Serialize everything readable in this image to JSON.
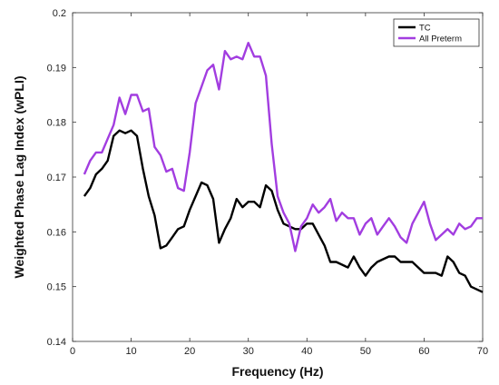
{
  "chart_data": {
    "type": "line",
    "xlabel": "Frequency (Hz)",
    "ylabel": "Weighted Phase Lag Index (wPLI)",
    "xlim": [
      0,
      70
    ],
    "ylim": [
      0.14,
      0.2
    ],
    "xticks": [
      "0",
      "10",
      "20",
      "30",
      "40",
      "50",
      "60",
      "70"
    ],
    "yticks": [
      "0.14",
      "0.15",
      "0.16",
      "0.17",
      "0.18",
      "0.19",
      "0.2"
    ],
    "xtick_values": [
      0,
      10,
      20,
      30,
      40,
      50,
      60,
      70
    ],
    "ytick_values": [
      0.14,
      0.15,
      0.16,
      0.17,
      0.18,
      0.19,
      0.2
    ],
    "legend_position": "top-right",
    "series": [
      {
        "name": "TC",
        "color": "#000000",
        "x": [
          2,
          3,
          4,
          5,
          6,
          7,
          8,
          9,
          10,
          11,
          12,
          13,
          14,
          15,
          16,
          17,
          18,
          19,
          20,
          21,
          22,
          23,
          24,
          25,
          26,
          27,
          28,
          29,
          30,
          31,
          32,
          33,
          34,
          35,
          36,
          37,
          38,
          39,
          40,
          41,
          42,
          43,
          44,
          45,
          46,
          47,
          48,
          49,
          50,
          51,
          52,
          53,
          54,
          55,
          56,
          57,
          58,
          59,
          60,
          61,
          62,
          63,
          64,
          65,
          66,
          67,
          68,
          69,
          70
        ],
        "y": [
          0.1665,
          0.168,
          0.1705,
          0.1715,
          0.173,
          0.1775,
          0.1785,
          0.178,
          0.1785,
          0.1775,
          0.1715,
          0.1665,
          0.163,
          0.157,
          0.1575,
          0.159,
          0.1605,
          0.161,
          0.164,
          0.1665,
          0.169,
          0.1685,
          0.166,
          0.158,
          0.1605,
          0.1625,
          0.166,
          0.1645,
          0.1655,
          0.1655,
          0.1645,
          0.1685,
          0.1675,
          0.164,
          0.1615,
          0.161,
          0.1605,
          0.1605,
          0.1615,
          0.1615,
          0.1595,
          0.1575,
          0.1545,
          0.1545,
          0.154,
          0.1535,
          0.1555,
          0.1535,
          0.152,
          0.1535,
          0.1545,
          0.155,
          0.1555,
          0.1555,
          0.1545,
          0.1545,
          0.1545,
          0.1535,
          0.1525,
          0.1525,
          0.1525,
          0.152,
          0.1555,
          0.1545,
          0.1525,
          0.152,
          0.15,
          0.1495,
          0.149
        ]
      },
      {
        "name": "All Preterm",
        "color": "#a23de0",
        "x": [
          2,
          3,
          4,
          5,
          6,
          7,
          8,
          9,
          10,
          11,
          12,
          13,
          14,
          15,
          16,
          17,
          18,
          19,
          20,
          21,
          22,
          23,
          24,
          25,
          26,
          27,
          28,
          29,
          30,
          31,
          32,
          33,
          34,
          35,
          36,
          37,
          38,
          39,
          40,
          41,
          42,
          43,
          44,
          45,
          46,
          47,
          48,
          49,
          50,
          51,
          52,
          53,
          54,
          55,
          56,
          57,
          58,
          59,
          60,
          61,
          62,
          63,
          64,
          65,
          66,
          67,
          68,
          69,
          70
        ],
        "y": [
          0.1705,
          0.173,
          0.1745,
          0.1745,
          0.177,
          0.1795,
          0.1845,
          0.1815,
          0.185,
          0.185,
          0.182,
          0.1825,
          0.1755,
          0.174,
          0.171,
          0.1715,
          0.168,
          0.1675,
          0.1745,
          0.1835,
          0.1865,
          0.1895,
          0.1905,
          0.186,
          0.193,
          0.1915,
          0.192,
          0.1915,
          0.1945,
          0.192,
          0.192,
          0.1885,
          0.176,
          0.1665,
          0.1635,
          0.1615,
          0.1565,
          0.161,
          0.1625,
          0.165,
          0.1635,
          0.1645,
          0.166,
          0.162,
          0.1635,
          0.1625,
          0.1625,
          0.1595,
          0.1615,
          0.1625,
          0.1595,
          0.161,
          0.1625,
          0.161,
          0.159,
          0.158,
          0.1615,
          0.1635,
          0.1655,
          0.1615,
          0.1585,
          0.1595,
          0.1605,
          0.1595,
          0.1615,
          0.1605,
          0.161,
          0.1625,
          0.1625
        ]
      }
    ]
  }
}
